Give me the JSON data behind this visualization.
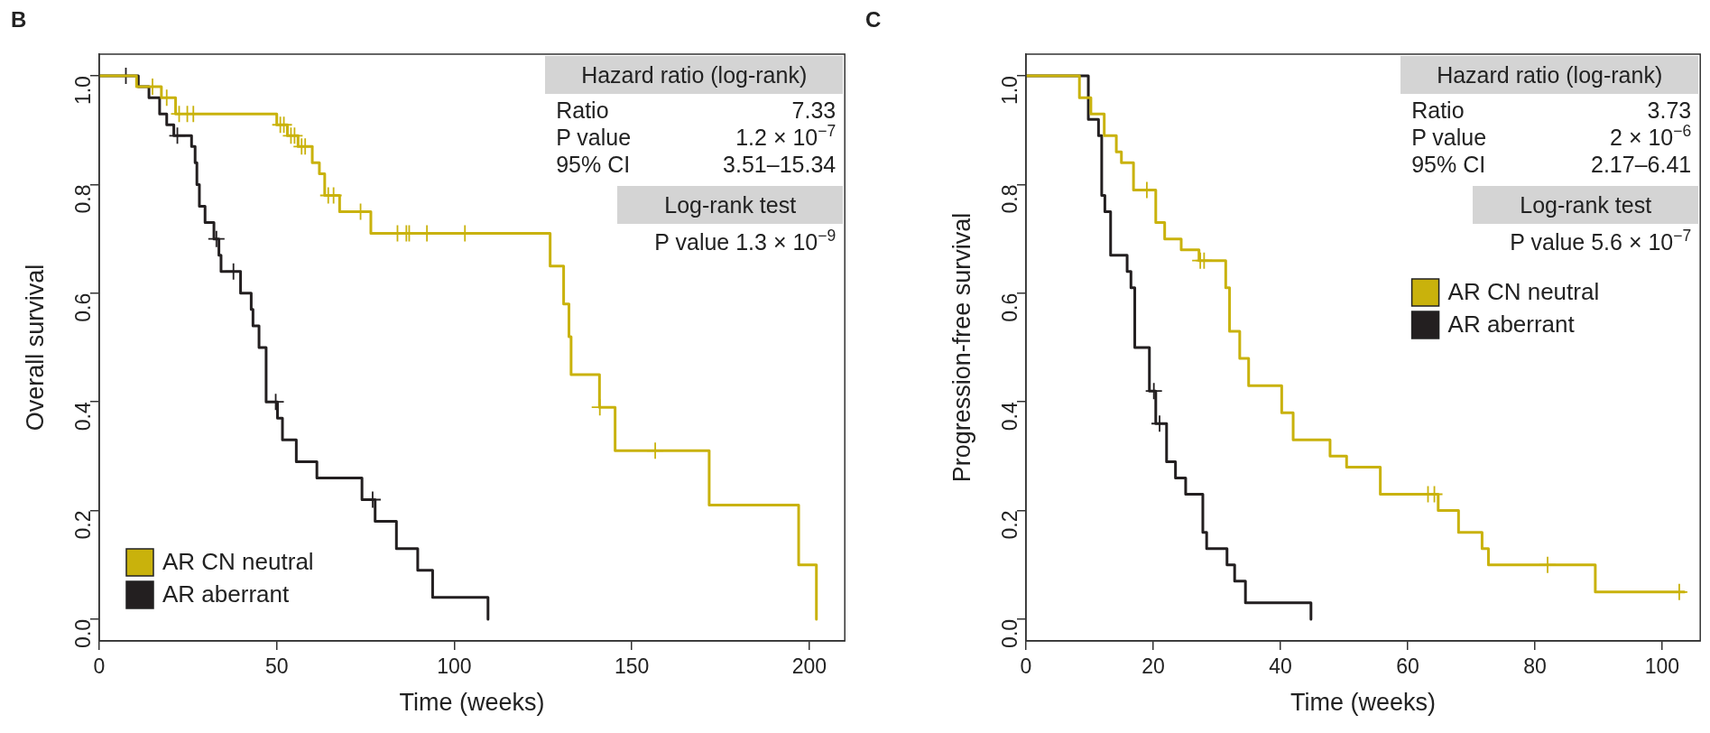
{
  "chart_data": [
    {
      "type": "step",
      "xlabel": "Time (weeks)",
      "ylabel": "Overall survival",
      "xlim": [
        0,
        210
      ],
      "xticks": [
        0,
        50,
        100,
        150,
        200
      ],
      "ylim": [
        -0.04,
        1.04
      ],
      "yticks": [
        {
          "value": 0,
          "label": "0.0"
        },
        {
          "value": 0.2,
          "label": "0.2"
        },
        {
          "value": 0.4,
          "label": "0.4"
        },
        {
          "value": 0.6,
          "label": "0.6"
        },
        {
          "value": 0.8,
          "label": "0.8"
        },
        {
          "value": 1,
          "label": "1.0"
        }
      ],
      "legend": "bottom left",
      "annotations": [
        "B",
        "Hazard ratio (log-rank)",
        "Ratio",
        "7.33",
        "P value",
        "1.2 × 10$^{−7}$",
        "95% CI",
        "3.51–15.34",
        "Log-rank test",
        "P value 1.3 × 10$^{−9}$"
      ],
      "series": [
        {
          "name": "AR CN neutral",
          "color": "#c9b20c",
          "x": [
            0,
            10.5,
            17.5,
            21.5,
            50,
            53,
            56,
            60,
            62,
            63.5,
            67.7,
            76.5,
            127,
            130.8,
            132.3,
            132.9,
            140.9,
            145.3,
            171.8,
            197,
            202
          ],
          "values": [
            1,
            0.98,
            0.96,
            0.93,
            0.91,
            0.89,
            0.87,
            0.84,
            0.82,
            0.78,
            0.75,
            0.71,
            0.65,
            0.58,
            0.52,
            0.45,
            0.39,
            0.31,
            0.21,
            0.1,
            0
          ]
        },
        {
          "name": "AR aberrant",
          "color": "#231f20",
          "x": [
            0,
            11,
            14,
            17,
            19,
            21,
            26,
            27,
            27.5,
            28.2,
            29.8,
            32.3,
            33.7,
            34.3,
            39.8,
            42.8,
            43.3,
            45,
            47,
            50.2,
            51.6,
            55.5,
            61.3,
            74,
            77.7,
            83.7,
            89.7,
            93.9,
            109.5
          ],
          "values": [
            1,
            0.98,
            0.96,
            0.93,
            0.91,
            0.89,
            0.87,
            0.84,
            0.8,
            0.76,
            0.73,
            0.7,
            0.67,
            0.64,
            0.6,
            0.57,
            0.54,
            0.5,
            0.4,
            0.37,
            0.33,
            0.29,
            0.26,
            0.22,
            0.18,
            0.13,
            0.09,
            0.04,
            0
          ]
        },
        {
          "type": "scatter",
          "marker": "cross",
          "color": "#c9b20c",
          "x": [
            15,
            19,
            22.5,
            24.8,
            26.5,
            51,
            52,
            54,
            55,
            57,
            58,
            64.5,
            66,
            73.6,
            84,
            86.5,
            87.3,
            92.3,
            103,
            141,
            156.6
          ],
          "values": [
            0.98,
            0.96,
            0.93,
            0.93,
            0.93,
            0.91,
            0.91,
            0.89,
            0.89,
            0.87,
            0.87,
            0.78,
            0.78,
            0.75,
            0.71,
            0.71,
            0.71,
            0.71,
            0.71,
            0.39,
            0.31
          ]
        },
        {
          "type": "scatter",
          "marker": "cross",
          "color": "#231f20",
          "x": [
            7.5,
            22,
            33,
            37.8,
            49.7,
            77
          ],
          "values": [
            1,
            0.89,
            0.7,
            0.64,
            0.4,
            0.22
          ]
        }
      ]
    },
    {
      "type": "step",
      "xlabel": "Time (weeks)",
      "ylabel": "Progression-free survival",
      "xlim": [
        0,
        106
      ],
      "xticks": [
        0,
        20,
        40,
        60,
        80,
        100
      ],
      "ylim": [
        -0.04,
        1.04
      ],
      "yticks": [
        {
          "value": 0,
          "label": "0.0"
        },
        {
          "value": 0.2,
          "label": "0.2"
        },
        {
          "value": 0.4,
          "label": "0.4"
        },
        {
          "value": 0.6,
          "label": "0.6"
        },
        {
          "value": 0.8,
          "label": "0.8"
        },
        {
          "value": 1,
          "label": "1.0"
        }
      ],
      "legend": "right",
      "annotations": [
        "C",
        "Hazard ratio (log-rank)",
        "Ratio",
        "3.73",
        "P value",
        "2 × 10$^{−6}$",
        "95% CI",
        "2.17–6.41",
        "Log-rank test",
        "P value 5.6 × 10$^{−7}$"
      ],
      "series": [
        {
          "name": "AR CN neutral",
          "color": "#c9b20c",
          "x": [
            0,
            8.4,
            10.2,
            12.3,
            14.2,
            15,
            16.9,
            20.4,
            21.8,
            24.4,
            27.2,
            31.4,
            32,
            33.6,
            35,
            40.2,
            42,
            47.8,
            50.4,
            55.7,
            64.8,
            68,
            71.7,
            72.7,
            89.5,
            103.5
          ],
          "values": [
            1,
            0.96,
            0.93,
            0.89,
            0.86,
            0.84,
            0.79,
            0.73,
            0.7,
            0.68,
            0.66,
            0.61,
            0.53,
            0.48,
            0.43,
            0.38,
            0.33,
            0.3,
            0.28,
            0.23,
            0.2,
            0.16,
            0.13,
            0.1,
            0.05,
            0.05
          ]
        },
        {
          "name": "AR aberrant",
          "color": "#231f20",
          "x": [
            0,
            9.8,
            11.4,
            11.9,
            12.4,
            13.3,
            15.9,
            16.5,
            17.1,
            19.4,
            20.4,
            22.1,
            23.5,
            25.1,
            27.8,
            28.4,
            31.6,
            32.8,
            34.5,
            44.8
          ],
          "values": [
            1,
            0.92,
            0.89,
            0.78,
            0.75,
            0.67,
            0.64,
            0.61,
            0.5,
            0.42,
            0.36,
            0.29,
            0.26,
            0.23,
            0.16,
            0.13,
            0.1,
            0.07,
            0.03,
            0
          ]
        },
        {
          "type": "scatter",
          "marker": "cross",
          "color": "#c9b20c",
          "x": [
            19,
            27.4,
            28,
            63.2,
            64.2,
            82,
            102.7
          ],
          "values": [
            0.79,
            0.66,
            0.66,
            0.23,
            0.23,
            0.1,
            0.05
          ]
        },
        {
          "type": "scatter",
          "marker": "cross",
          "color": "#231f20",
          "x": [
            20.1,
            21
          ],
          "values": [
            0.42,
            0.36
          ]
        }
      ]
    }
  ]
}
